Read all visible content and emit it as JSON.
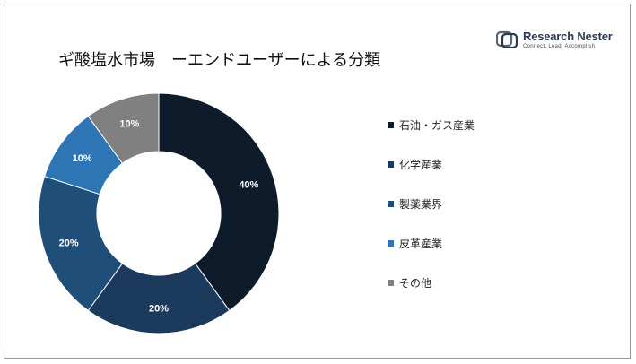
{
  "title": "ギ酸塩水市場　ーエンドユーザーによる分類",
  "logo": {
    "name": "Research Nester",
    "tagline": "Connect. Lead. Accomplish"
  },
  "chart_data": {
    "type": "pie",
    "donut": true,
    "categories": [
      "石油・ガス産業",
      "化学産業",
      "製薬業界",
      "皮革産業",
      "その他"
    ],
    "values": [
      40,
      20,
      20,
      10,
      10
    ],
    "labels": [
      "40%",
      "20%",
      "20%",
      "10%",
      "10%"
    ],
    "colors": [
      "#0d1b2a",
      "#1b3a5c",
      "#1f4e79",
      "#2e75b6",
      "#808080"
    ],
    "legend_position": "right"
  }
}
